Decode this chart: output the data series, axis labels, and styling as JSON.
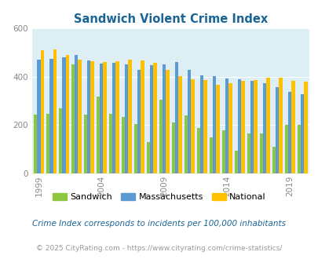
{
  "title": "Sandwich Violent Crime Index",
  "title_color": "#1a6496",
  "years": [
    1999,
    2000,
    2001,
    2002,
    2003,
    2004,
    2005,
    2006,
    2007,
    2008,
    2009,
    2010,
    2011,
    2012,
    2013,
    2014,
    2015,
    2016,
    2017,
    2018,
    2019,
    2020
  ],
  "sandwich": [
    245,
    248,
    270,
    450,
    245,
    320,
    248,
    235,
    205,
    130,
    305,
    210,
    240,
    190,
    150,
    180,
    95,
    165,
    165,
    110,
    202,
    200
  ],
  "massachusetts": [
    470,
    475,
    480,
    490,
    468,
    455,
    458,
    450,
    430,
    448,
    452,
    462,
    430,
    405,
    403,
    393,
    390,
    382,
    375,
    358,
    338,
    328
  ],
  "national": [
    510,
    513,
    490,
    470,
    465,
    460,
    463,
    470,
    468,
    458,
    430,
    404,
    390,
    388,
    368,
    374,
    383,
    388,
    395,
    395,
    383,
    379
  ],
  "sandwich_color": "#8dc63f",
  "massachusetts_color": "#5b9bd5",
  "national_color": "#ffc000",
  "bg_color": "#ddeef4",
  "ylim": [
    0,
    600
  ],
  "yticks": [
    0,
    200,
    400,
    600
  ],
  "xlabel_ticks": [
    1999,
    2004,
    2009,
    2014,
    2019
  ],
  "footnote": "Crime Index corresponds to incidents per 100,000 inhabitants",
  "copyright": "© 2025 CityRating.com - https://www.cityrating.com/crime-statistics/",
  "footnote_color": "#1a6496",
  "copyright_color": "#999999"
}
